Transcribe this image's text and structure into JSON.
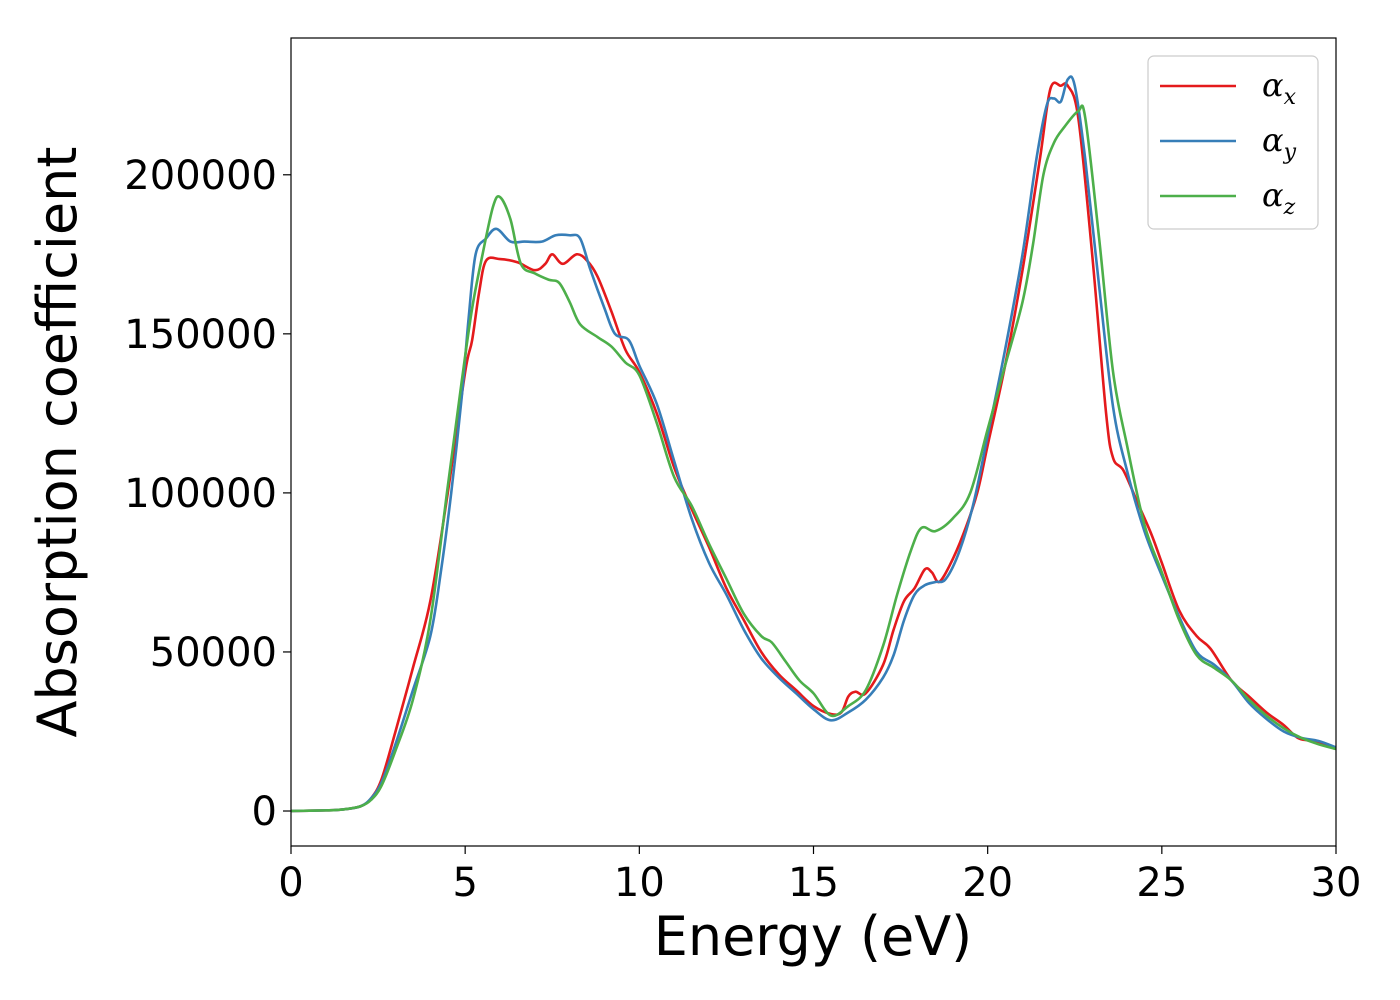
{
  "chart_data": {
    "type": "line",
    "title": "",
    "xlabel": "Energy (eV)",
    "ylabel": "Absorption coefficient",
    "xlim": [
      0,
      30
    ],
    "ylim": [
      -11000,
      243000
    ],
    "xticks": [
      0,
      5,
      10,
      15,
      20,
      25,
      30
    ],
    "yticks": [
      0,
      50000,
      100000,
      150000,
      200000
    ],
    "grid": false,
    "legend_position": "top-right",
    "series": [
      {
        "name": "αx",
        "subscript": "x",
        "color": "#e41a1c",
        "points": [
          [
            0,
            0
          ],
          [
            1,
            200
          ],
          [
            1.5,
            500
          ],
          [
            2,
            1500
          ],
          [
            2.3,
            4000
          ],
          [
            2.6,
            10000
          ],
          [
            3,
            25000
          ],
          [
            3.5,
            45000
          ],
          [
            4,
            66000
          ],
          [
            4.5,
            100000
          ],
          [
            5,
            138000
          ],
          [
            5.2,
            148000
          ],
          [
            5.4,
            163000
          ],
          [
            5.6,
            173000
          ],
          [
            6,
            173500
          ],
          [
            6.5,
            172500
          ],
          [
            7,
            170000
          ],
          [
            7.3,
            172000
          ],
          [
            7.5,
            175000
          ],
          [
            7.8,
            172000
          ],
          [
            8.2,
            175000
          ],
          [
            8.5,
            173000
          ],
          [
            8.8,
            168000
          ],
          [
            9.2,
            157000
          ],
          [
            9.6,
            145000
          ],
          [
            10,
            138000
          ],
          [
            10.5,
            125000
          ],
          [
            11,
            108000
          ],
          [
            11.5,
            95000
          ],
          [
            12,
            83000
          ],
          [
            12.5,
            70000
          ],
          [
            13,
            60000
          ],
          [
            13.5,
            50000
          ],
          [
            14,
            43000
          ],
          [
            14.5,
            38000
          ],
          [
            15,
            33000
          ],
          [
            15.5,
            30500
          ],
          [
            15.8,
            31000
          ],
          [
            16,
            36000
          ],
          [
            16.2,
            37500
          ],
          [
            16.5,
            37000
          ],
          [
            17,
            46000
          ],
          [
            17.3,
            57000
          ],
          [
            17.6,
            66000
          ],
          [
            17.9,
            70000
          ],
          [
            18.2,
            76000
          ],
          [
            18.4,
            75000
          ],
          [
            18.6,
            72000
          ],
          [
            18.9,
            77000
          ],
          [
            19.3,
            87000
          ],
          [
            19.7,
            100000
          ],
          [
            20,
            115000
          ],
          [
            20.5,
            140000
          ],
          [
            21,
            170000
          ],
          [
            21.5,
            205000
          ],
          [
            21.8,
            227000
          ],
          [
            22.1,
            228000
          ],
          [
            22.3,
            228000
          ],
          [
            22.6,
            218000
          ],
          [
            23,
            175000
          ],
          [
            23.4,
            125000
          ],
          [
            23.6,
            111000
          ],
          [
            23.9,
            107000
          ],
          [
            24.3,
            97000
          ],
          [
            24.7,
            87000
          ],
          [
            25,
            78000
          ],
          [
            25.5,
            63000
          ],
          [
            26,
            55000
          ],
          [
            26.4,
            51000
          ],
          [
            27,
            41000
          ],
          [
            27.5,
            36000
          ],
          [
            28,
            31000
          ],
          [
            28.5,
            27000
          ],
          [
            28.9,
            23000
          ],
          [
            29.3,
            22000
          ],
          [
            30,
            20000
          ]
        ]
      },
      {
        "name": "αy",
        "subscript": "y",
        "color": "#377eb8",
        "points": [
          [
            0,
            0
          ],
          [
            1,
            200
          ],
          [
            1.5,
            500
          ],
          [
            2,
            1500
          ],
          [
            2.3,
            4000
          ],
          [
            2.6,
            9000
          ],
          [
            3,
            21000
          ],
          [
            3.5,
            38000
          ],
          [
            4,
            55000
          ],
          [
            4.3,
            75000
          ],
          [
            4.6,
            100000
          ],
          [
            4.9,
            130000
          ],
          [
            5.1,
            155000
          ],
          [
            5.3,
            175000
          ],
          [
            5.6,
            180000
          ],
          [
            5.9,
            183000
          ],
          [
            6.3,
            179000
          ],
          [
            6.7,
            179000
          ],
          [
            7.2,
            179000
          ],
          [
            7.6,
            181000
          ],
          [
            8,
            181000
          ],
          [
            8.3,
            180000
          ],
          [
            8.6,
            170000
          ],
          [
            9,
            158000
          ],
          [
            9.3,
            150000
          ],
          [
            9.7,
            148000
          ],
          [
            10,
            140000
          ],
          [
            10.5,
            128000
          ],
          [
            11,
            110000
          ],
          [
            11.5,
            92000
          ],
          [
            12,
            78000
          ],
          [
            12.5,
            68000
          ],
          [
            13,
            57000
          ],
          [
            13.5,
            48000
          ],
          [
            14,
            42000
          ],
          [
            14.5,
            37000
          ],
          [
            15,
            32000
          ],
          [
            15.5,
            28500
          ],
          [
            16,
            31000
          ],
          [
            16.5,
            35000
          ],
          [
            17,
            42000
          ],
          [
            17.3,
            49000
          ],
          [
            17.6,
            60000
          ],
          [
            17.9,
            68000
          ],
          [
            18.2,
            71000
          ],
          [
            18.5,
            72000
          ],
          [
            18.8,
            73000
          ],
          [
            19.2,
            82000
          ],
          [
            19.6,
            97000
          ],
          [
            20,
            118000
          ],
          [
            20.5,
            145000
          ],
          [
            21,
            175000
          ],
          [
            21.4,
            205000
          ],
          [
            21.7,
            222000
          ],
          [
            21.9,
            224000
          ],
          [
            22.1,
            223000
          ],
          [
            22.3,
            230000
          ],
          [
            22.5,
            228000
          ],
          [
            22.8,
            205000
          ],
          [
            23.2,
            165000
          ],
          [
            23.6,
            127000
          ],
          [
            24,
            107000
          ],
          [
            24.5,
            88000
          ],
          [
            25,
            74000
          ],
          [
            25.5,
            61000
          ],
          [
            26,
            50000
          ],
          [
            26.5,
            46000
          ],
          [
            27,
            41000
          ],
          [
            27.5,
            34000
          ],
          [
            28,
            29000
          ],
          [
            28.5,
            25000
          ],
          [
            29,
            23000
          ],
          [
            29.5,
            22000
          ],
          [
            30,
            20000
          ]
        ]
      },
      {
        "name": "αz",
        "subscript": "z",
        "color": "#4daf4a",
        "points": [
          [
            0,
            0
          ],
          [
            1,
            200
          ],
          [
            1.5,
            500
          ],
          [
            2,
            1500
          ],
          [
            2.3,
            3500
          ],
          [
            2.6,
            8000
          ],
          [
            3,
            19000
          ],
          [
            3.5,
            35000
          ],
          [
            4,
            60000
          ],
          [
            4.5,
            102000
          ],
          [
            4.9,
            135000
          ],
          [
            5.2,
            158000
          ],
          [
            5.5,
            175000
          ],
          [
            5.8,
            190000
          ],
          [
            6,
            193000
          ],
          [
            6.3,
            186000
          ],
          [
            6.6,
            172000
          ],
          [
            7,
            169000
          ],
          [
            7.4,
            167000
          ],
          [
            7.7,
            166000
          ],
          [
            8,
            160000
          ],
          [
            8.3,
            153000
          ],
          [
            8.8,
            149000
          ],
          [
            9.2,
            146000
          ],
          [
            9.6,
            141000
          ],
          [
            10,
            137000
          ],
          [
            10.5,
            122000
          ],
          [
            11,
            105000
          ],
          [
            11.5,
            96000
          ],
          [
            12,
            84000
          ],
          [
            12.5,
            73000
          ],
          [
            13,
            62000
          ],
          [
            13.5,
            55000
          ],
          [
            13.8,
            53000
          ],
          [
            14.2,
            47000
          ],
          [
            14.6,
            41000
          ],
          [
            15,
            37000
          ],
          [
            15.5,
            30000
          ],
          [
            16,
            33000
          ],
          [
            16.5,
            38000
          ],
          [
            17,
            52000
          ],
          [
            17.4,
            68000
          ],
          [
            17.8,
            82000
          ],
          [
            18.1,
            89000
          ],
          [
            18.5,
            88000
          ],
          [
            19,
            92000
          ],
          [
            19.5,
            100000
          ],
          [
            20,
            120000
          ],
          [
            20.5,
            140000
          ],
          [
            21,
            160000
          ],
          [
            21.3,
            178000
          ],
          [
            21.6,
            200000
          ],
          [
            21.9,
            210000
          ],
          [
            22.2,
            215000
          ],
          [
            22.6,
            220000
          ],
          [
            22.8,
            218000
          ],
          [
            23.2,
            180000
          ],
          [
            23.6,
            138000
          ],
          [
            24,
            115000
          ],
          [
            24.5,
            90000
          ],
          [
            25,
            75000
          ],
          [
            25.5,
            60000
          ],
          [
            26,
            49000
          ],
          [
            26.5,
            45000
          ],
          [
            27,
            41000
          ],
          [
            27.5,
            35000
          ],
          [
            28,
            30000
          ],
          [
            28.5,
            26000
          ],
          [
            29,
            23000
          ],
          [
            29.5,
            21000
          ],
          [
            30,
            19500
          ]
        ]
      }
    ]
  }
}
